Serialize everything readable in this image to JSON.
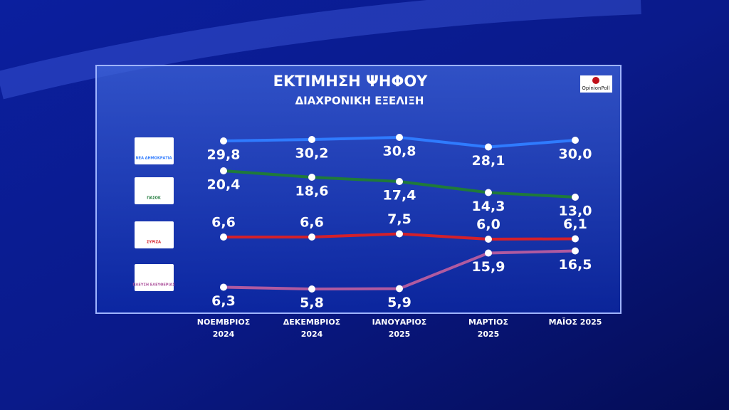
{
  "chart_data": {
    "type": "line",
    "title": "ΕΚΤΙΜΗΣΗ ΨΗΦΟΥ",
    "subtitle": "ΔΙΑΧΡΟΝΙΚΗ ΕΞΕΛΙΞΗ",
    "source": "OpinionPoll",
    "categories": [
      "ΝΟΕΜΒΡΙΟΣ 2024",
      "ΔΕΚΕΜΒΡΙΟΣ 2024",
      "ΙΑΝΟΥΑΡΙΟΣ 2025",
      "ΜΑΡΤΙΟΣ 2025",
      "ΜΑΪΟΣ 2025"
    ],
    "series": [
      {
        "name": "ΝΕΑ ΔΗΜΟΚΡΑΤΙΑ",
        "color": "#2f7bff",
        "values": [
          29.8,
          30.2,
          30.8,
          28.1,
          30.0
        ],
        "value_labels": [
          "29,8",
          "30,2",
          "30,8",
          "28,1",
          "30,0"
        ]
      },
      {
        "name": "ΠΑΣΟΚ",
        "color": "#1f7a3a",
        "values": [
          20.4,
          18.6,
          17.4,
          14.3,
          13.0
        ],
        "value_labels": [
          "20,4",
          "18,6",
          "17,4",
          "14,3",
          "13,0"
        ]
      },
      {
        "name": "ΣΥΡΙΖΑ",
        "color": "#d4202a",
        "values": [
          6.6,
          6.6,
          7.5,
          6.0,
          6.1
        ],
        "value_labels": [
          "6,6",
          "6,6",
          "7,5",
          "6,0",
          "6,1"
        ]
      },
      {
        "name": "ΠΛΕΥΣΗ ΕΛΕΥΘΕΡΙΑΣ",
        "color": "#b05aa0",
        "values": [
          6.3,
          5.8,
          5.9,
          15.9,
          16.5
        ],
        "value_labels": [
          "6,3",
          "5,8",
          "5,9",
          "15,9",
          "16,5"
        ]
      }
    ]
  }
}
